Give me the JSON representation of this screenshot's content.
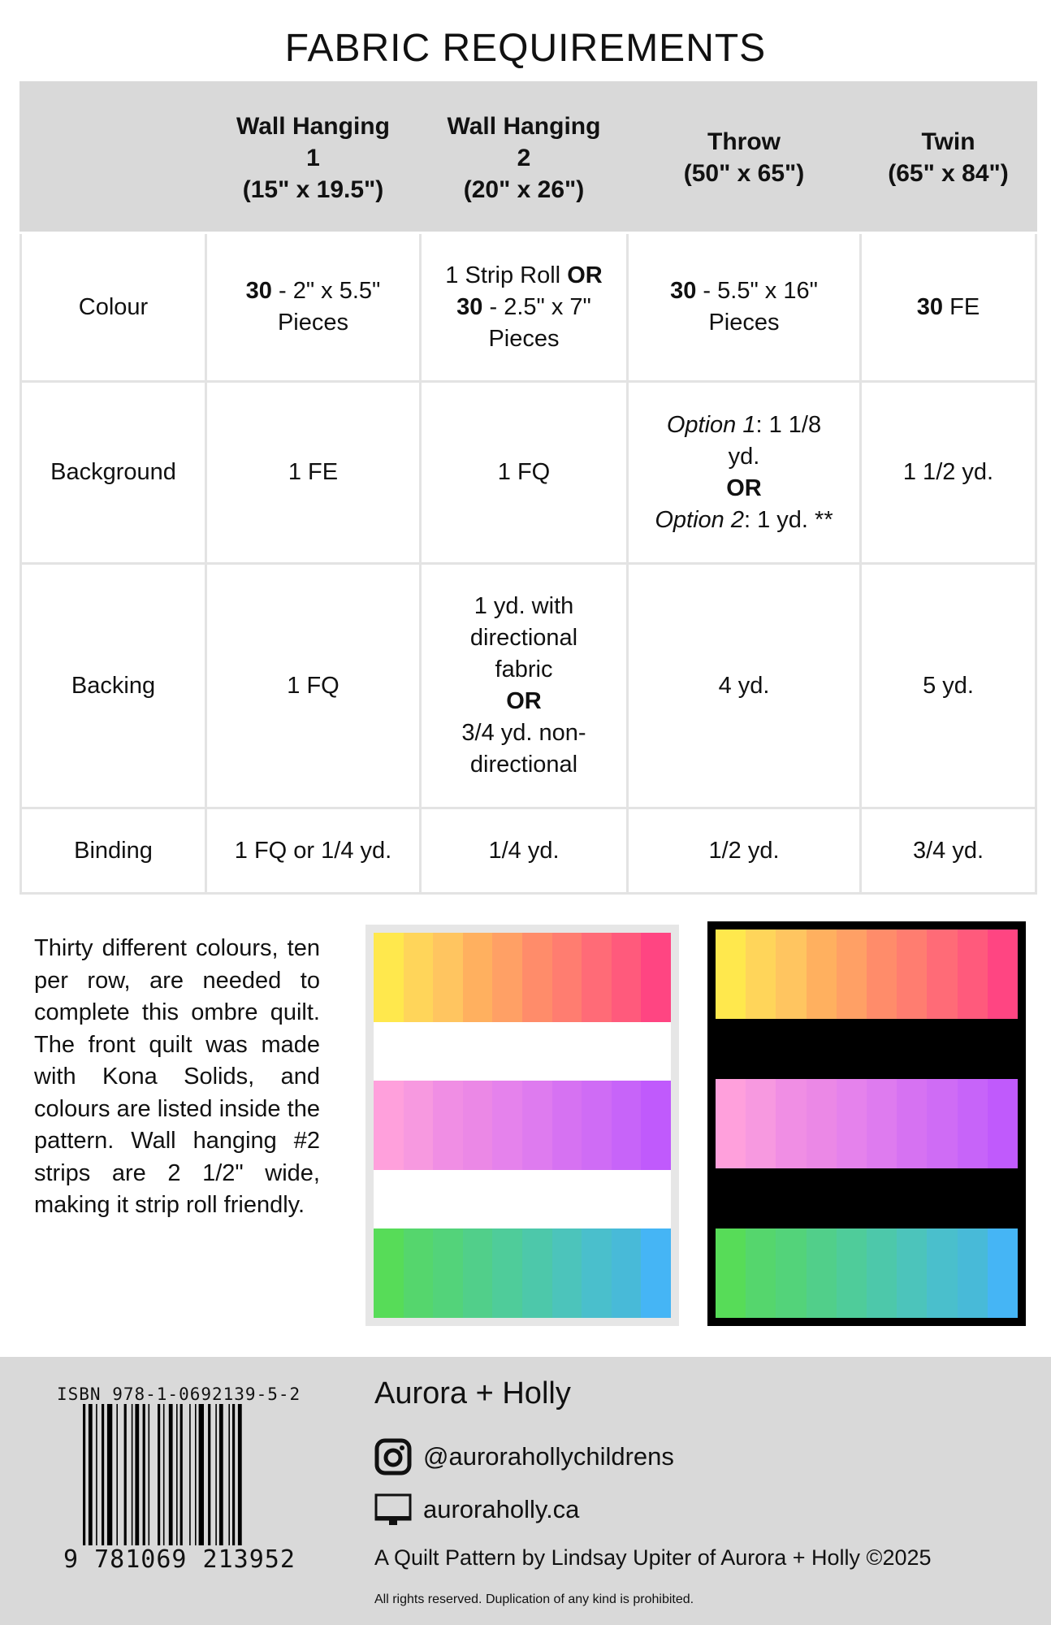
{
  "title": "FABRIC REQUIREMENTS",
  "table": {
    "headers": [
      {
        "l1": "Wall Hanging",
        "l2": "1",
        "l3": "(15\" x 19.5\")"
      },
      {
        "l1": "Wall Hanging",
        "l2": "2",
        "l3": "(20\" x 26\")"
      },
      {
        "l1": "Throw",
        "l2": "(50\" x 65\")"
      },
      {
        "l1": "Twin",
        "l2": "(65\" x 84\")"
      }
    ],
    "rows": {
      "colour": {
        "label": "Colour",
        "c1_bold": "30",
        "c1_rest": " - 2\" x 5.5\"",
        "c1_l2": "Pieces",
        "c2_a": "1 Strip Roll ",
        "c2_or": "OR",
        "c2_bold": "30",
        "c2_rest": " - 2.5\" x 7\"",
        "c2_l3": "Pieces",
        "c3_bold": "30",
        "c3_rest": " - 5.5\" x 16\"",
        "c3_l2": "Pieces",
        "c4_bold": "30",
        "c4_rest": " FE"
      },
      "background": {
        "label": "Background",
        "c1": "1 FE",
        "c2": "1 FQ",
        "c3_opt1": "Option 1",
        "c3_v1": ": 1 1/8",
        "c3_l2": "yd.",
        "c3_or": "OR",
        "c3_opt2": "Option 2",
        "c3_v2": ": 1 yd. **",
        "c4": "1 1/2 yd."
      },
      "backing": {
        "label": "Backing",
        "c1": "1 FQ",
        "c2_l1": "1 yd. with",
        "c2_l2": "directional",
        "c2_l3": "fabric",
        "c2_or": "OR",
        "c2_l5": "3/4 yd. non-",
        "c2_l6": "directional",
        "c3": "4 yd.",
        "c4": "5 yd."
      },
      "binding": {
        "label": "Binding",
        "c1": "1 FQ or 1/4 yd.",
        "c2": "1/4 yd.",
        "c3": "1/2 yd.",
        "c4": "3/4 yd."
      }
    }
  },
  "description": "Thirty different colours, ten per row, are needed to complete this ombre quilt. The front quilt was made with Kona Solids, and colours are listed inside the pattern. Wall hanging #2 strips are 2 1/2\" wide, making it strip roll friendly.",
  "quilt_colors": [
    [
      "#ffe84d",
      "#ffd55a",
      "#ffc560",
      "#ffb05f",
      "#ffa065",
      "#ff8c6a",
      "#ff7d70",
      "#ff6b77",
      "#ff5a7c",
      "#ff4582"
    ],
    [
      "#ffa0dc",
      "#f799e0",
      "#f08ee4",
      "#eb88e6",
      "#e582ec",
      "#de7bef",
      "#d672f2",
      "#cf6cf5",
      "#c764f9",
      "#c05afc"
    ],
    [
      "#57dc58",
      "#55d66d",
      "#53d37a",
      "#51cf8a",
      "#4fcc9a",
      "#4dc8aa",
      "#4cc4bb",
      "#4abfcc",
      "#48bad8",
      "#45b5f5"
    ]
  ],
  "footer": {
    "isbn": "ISBN 978-1-0692139-5-2",
    "ean": "9 781069 213952",
    "brand": "Aurora + Holly",
    "instagram": "@aurorahollychildrens",
    "website": "auroraholly.ca",
    "credit": "A Quilt Pattern by Lindsay Upiter of Aurora + Holly ©2025",
    "rights": "All rights reserved. Duplication of any kind is prohibited."
  }
}
